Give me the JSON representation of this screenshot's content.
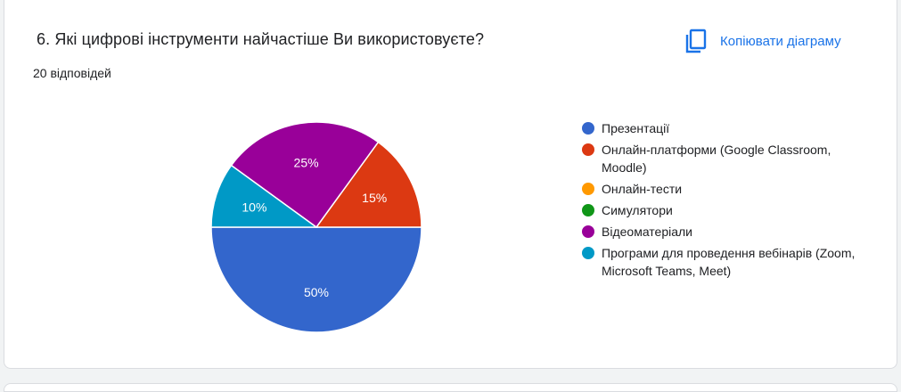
{
  "question": {
    "title": "6. Які цифрові інструменти найчастіше Ви використовуєте?"
  },
  "summary": {
    "responses": "20 відповідей"
  },
  "toolbar": {
    "copy_label": "Копіювати діаграму",
    "copy_icon": "copy-icon"
  },
  "colors": {
    "accent": "#1a73e8"
  },
  "chart_data": {
    "type": "pie",
    "title": "",
    "legend_position": "right",
    "slices": [
      {
        "label": "Презентації",
        "value": 50,
        "display": "50%",
        "color": "#3366cc"
      },
      {
        "label": "Онлайн-платформи (Google Classroom, Moodle)",
        "value": 15,
        "display": "15%",
        "color": "#dc3912"
      },
      {
        "label": "Онлайн-тести",
        "value": 0,
        "display": "",
        "color": "#ff9900"
      },
      {
        "label": "Симулятори",
        "value": 0,
        "display": "",
        "color": "#109618"
      },
      {
        "label": "Відеоматеріали",
        "value": 25,
        "display": "25%",
        "color": "#990099"
      },
      {
        "label": "Програми для проведення вебінарів (Zoom, Microsoft Teams, Meet)",
        "value": 10,
        "display": "10%",
        "color": "#0099c6"
      }
    ]
  }
}
